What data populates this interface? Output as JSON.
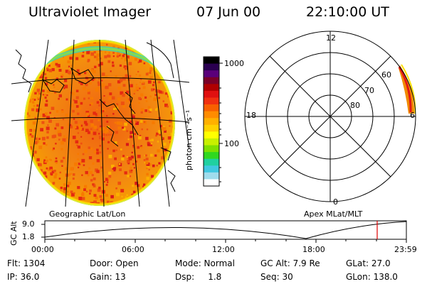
{
  "header": {
    "instrument": "Ultraviolet Imager",
    "date": "07 Jun 00",
    "time": "22:10:00 UT"
  },
  "colorbar": {
    "unit_label": "photon cm⁻²s⁻¹",
    "ticks": [
      "1000",
      "100"
    ],
    "colors": [
      "#000000",
      "#2a0050",
      "#5a007a",
      "#7a0028",
      "#b00000",
      "#e01010",
      "#f03010",
      "#f86000",
      "#ff8c00",
      "#ffb000",
      "#ffd000",
      "#ffff00",
      "#c8f000",
      "#80e000",
      "#30d820",
      "#20d0a0",
      "#40c8e0",
      "#a0dcec",
      "#ffffff"
    ]
  },
  "geographic_panel": {
    "label": "Geographic Lat/Lon"
  },
  "polar_plot": {
    "label": "Apex MLat/MLT",
    "mlt_labels": {
      "top": "12",
      "left": "18",
      "right": "6",
      "bottom": "0"
    },
    "lat_labels": [
      "60",
      "70",
      "80"
    ]
  },
  "altitude_plot": {
    "ylabel": "GC Alt",
    "y_ticks": [
      "9.0",
      "1.8"
    ],
    "x_ticks": [
      "00:00",
      "06:00",
      "12:00",
      "18:00",
      "23:59"
    ],
    "marker_color": "#e00000"
  },
  "info": {
    "row1": [
      "Flt: 1304",
      "Door: Open",
      "Mode: Normal",
      "GC Alt: 7.9 Re",
      "GLat: 27.0"
    ],
    "row2": [
      "IP: 36.0",
      "Gain: 13",
      "Dsp:     1.8",
      "Seq: 30",
      "GLon: 138.0"
    ]
  }
}
